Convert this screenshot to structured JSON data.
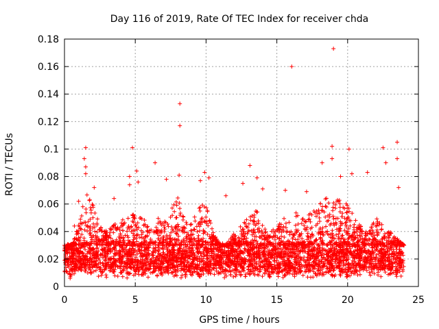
{
  "chart_data": {
    "type": "scatter",
    "title": "Day 116 of 2019, Rate Of TEC Index for receiver chda",
    "xlabel": "GPS time / hours",
    "ylabel": "ROTI / TECUs",
    "xlim": [
      0,
      25
    ],
    "ylim": [
      0,
      0.18
    ],
    "xticks": [
      0,
      5,
      10,
      15,
      20,
      25
    ],
    "xtick_labels": [
      "0",
      "5",
      "10",
      "15",
      "20",
      "25"
    ],
    "yticks": [
      0,
      0.02,
      0.04,
      0.06,
      0.08,
      0.1,
      0.12,
      0.14,
      0.16,
      0.18
    ],
    "ytick_labels": [
      "0",
      "0.02",
      "0.04",
      "0.06",
      "0.08",
      "0.1",
      "0.12",
      "0.14",
      "0.16",
      "0.18"
    ],
    "grid": true,
    "marker": "+",
    "color": "#ff0000",
    "x_range_hours": [
      0,
      24
    ],
    "baseline_band": [
      0.01,
      0.03
    ],
    "series": [
      {
        "name": "ROTI",
        "points": [
          [
            19.0,
            0.173
          ],
          [
            16.05,
            0.16
          ],
          [
            8.15,
            0.133
          ],
          [
            8.15,
            0.117
          ],
          [
            1.5,
            0.101
          ],
          [
            4.8,
            0.101
          ],
          [
            18.9,
            0.102
          ],
          [
            22.5,
            0.101
          ],
          [
            23.5,
            0.105
          ],
          [
            23.5,
            0.093
          ],
          [
            1.4,
            0.093
          ],
          [
            1.5,
            0.087
          ],
          [
            1.5,
            0.082
          ],
          [
            6.4,
            0.09
          ],
          [
            13.1,
            0.088
          ],
          [
            20.1,
            0.1
          ],
          [
            18.9,
            0.093
          ],
          [
            18.2,
            0.09
          ],
          [
            22.7,
            0.09
          ],
          [
            5.1,
            0.084
          ],
          [
            9.9,
            0.083
          ],
          [
            10.2,
            0.079
          ],
          [
            4.6,
            0.08
          ],
          [
            4.6,
            0.074
          ],
          [
            8.1,
            0.081
          ],
          [
            13.6,
            0.079
          ],
          [
            20.3,
            0.082
          ],
          [
            21.4,
            0.083
          ],
          [
            17.1,
            0.069
          ],
          [
            15.6,
            0.07
          ],
          [
            23.6,
            0.072
          ],
          [
            12.6,
            0.075
          ],
          [
            9.6,
            0.077
          ],
          [
            7.2,
            0.078
          ],
          [
            5.2,
            0.076
          ],
          [
            19.5,
            0.08
          ],
          [
            14.0,
            0.071
          ],
          [
            11.4,
            0.066
          ],
          [
            3.5,
            0.064
          ],
          [
            2.1,
            0.072
          ],
          [
            1.0,
            0.062
          ],
          [
            0.7,
            0.044
          ],
          [
            0.2,
            0.027
          ],
          [
            0.4,
            0.006
          ]
        ]
      }
    ],
    "activity_envelope": {
      "hours": [
        0,
        0.5,
        1,
        1.5,
        2,
        2.5,
        3,
        3.5,
        4,
        4.5,
        5,
        5.5,
        6,
        6.5,
        7,
        7.5,
        8,
        8.5,
        9,
        9.5,
        10,
        10.5,
        11,
        11.5,
        12,
        12.5,
        13,
        13.5,
        14,
        14.5,
        15,
        15.5,
        16,
        16.5,
        17,
        17.5,
        18,
        18.5,
        19,
        19.5,
        20,
        20.5,
        21,
        21.5,
        22,
        22.5,
        23,
        23.5,
        24
      ],
      "upper_roti": [
        0.025,
        0.03,
        0.045,
        0.07,
        0.06,
        0.045,
        0.04,
        0.045,
        0.05,
        0.05,
        0.055,
        0.05,
        0.045,
        0.05,
        0.05,
        0.055,
        0.065,
        0.05,
        0.045,
        0.06,
        0.06,
        0.04,
        0.03,
        0.03,
        0.04,
        0.045,
        0.05,
        0.06,
        0.05,
        0.04,
        0.045,
        0.05,
        0.05,
        0.055,
        0.05,
        0.055,
        0.06,
        0.065,
        0.07,
        0.065,
        0.06,
        0.05,
        0.045,
        0.04,
        0.05,
        0.045,
        0.04,
        0.035,
        0.03
      ]
    }
  }
}
